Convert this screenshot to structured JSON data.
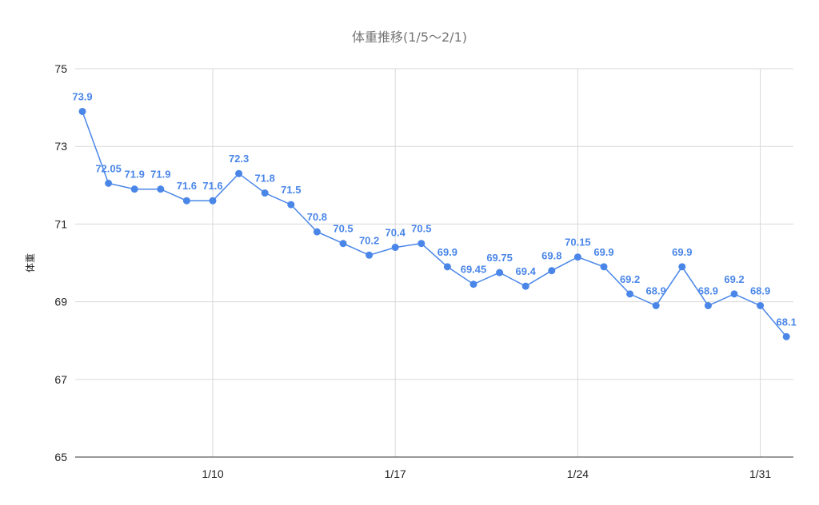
{
  "chart_data": {
    "type": "line",
    "title": "体重推移(1/5〜2/1)",
    "xlabel": "",
    "ylabel": "体重",
    "ylim": [
      65,
      75
    ],
    "yticks": [
      65,
      67,
      69,
      71,
      73,
      75
    ],
    "x": [
      "1/5",
      "1/6",
      "1/7",
      "1/8",
      "1/9",
      "1/10",
      "1/11",
      "1/12",
      "1/13",
      "1/14",
      "1/15",
      "1/16",
      "1/17",
      "1/18",
      "1/19",
      "1/20",
      "1/21",
      "1/22",
      "1/23",
      "1/24",
      "1/25",
      "1/26",
      "1/27",
      "1/28",
      "1/29",
      "1/30",
      "1/31",
      "2/1"
    ],
    "xtick_labels": [
      "1/10",
      "1/17",
      "1/24",
      "1/31"
    ],
    "series": [
      {
        "values": [
          73.9,
          72.05,
          71.9,
          71.9,
          71.6,
          71.6,
          72.3,
          71.8,
          71.5,
          70.8,
          70.5,
          70.2,
          70.4,
          70.5,
          69.9,
          69.45,
          69.75,
          69.4,
          69.8,
          70.15,
          69.9,
          69.2,
          68.9,
          69.9,
          68.9,
          69.2,
          68.9,
          68.1
        ],
        "labels": [
          "73.9",
          "72.05",
          "71.9",
          "71.9",
          "71.6",
          "71.6",
          "72.3",
          "71.8",
          "71.5",
          "70.8",
          "70.5",
          "70.2",
          "70.4",
          "70.5",
          "69.9",
          "69.45",
          "69.75",
          "69.4",
          "69.8",
          "70.15",
          "69.9",
          "69.2",
          "68.9",
          "69.9",
          "68.9",
          "69.2",
          "68.9",
          "68.1"
        ]
      }
    ],
    "grid": true,
    "legend": "none",
    "colors": {
      "series": "#4a86e8",
      "grid": "#d9d9d9",
      "axis": "#333333",
      "title": "#757575"
    }
  }
}
